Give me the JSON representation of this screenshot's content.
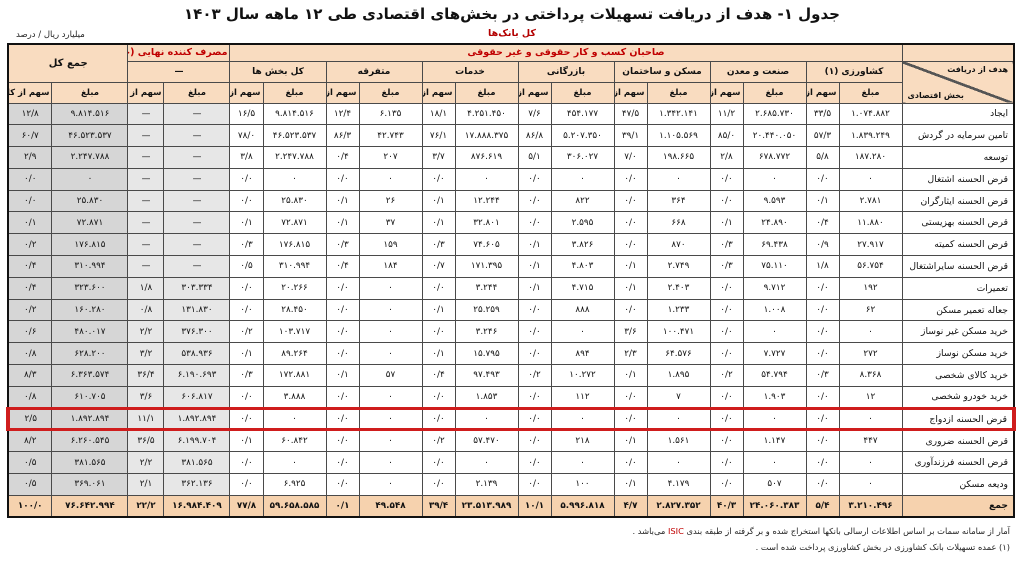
{
  "title": "جدول ۱- هدف از دریافت تسهیلات پرداختی در بخش‌های اقتصادی طی ۱۲ ماهه سال ۱۴۰۳",
  "unit_label": "میلیارد ریال / درصد",
  "scope_label": "کل بانک‌ها",
  "table": {
    "corner": {
      "purpose": "هدف از دریافت",
      "sector": "بخش اقتصادی"
    },
    "groups": {
      "business_owners": "صاحبان کسب و کار حقوقی و غیر حقوقی",
      "household": "مصرف کننده نهایی (خانوار)",
      "household_sub": "—",
      "grand_total": "جمع کل",
      "sectors": [
        "کشاورزی (۱)",
        "صنعت و معدن",
        "مسکن و ساختمان",
        "بازرگانی",
        "خدمات",
        "متفرقه",
        "کل بخش ها"
      ]
    },
    "sub_headers": {
      "amount": "مبلغ",
      "share": "سهم از کل"
    },
    "rows": [
      {
        "label": "ایجاد",
        "cells": [
          "۱.۰۷۴.۸۸۲",
          "۳۳/۵",
          "۲.۶۸۵.۷۳۰",
          "۱۱/۲",
          "۱.۳۴۲.۱۴۱",
          "۴۷/۵",
          "۴۵۴.۱۷۷",
          "۷/۶",
          "۴.۲۵۱.۴۵۰",
          "۱۸/۱",
          "۶.۱۳۵",
          "۱۲/۴",
          "۹.۸۱۴.۵۱۶",
          "۱۶/۵",
          "—",
          "—",
          "۹.۸۱۴.۵۱۶",
          "۱۲/۸"
        ]
      },
      {
        "label": "تامین سرمایه در گردش",
        "cells": [
          "۱.۸۳۹.۲۴۹",
          "۵۷/۳",
          "۲۰.۴۴۰.۰۵۰",
          "۸۵/۰",
          "۱.۱۰۵.۵۶۹",
          "۳۹/۱",
          "۵.۲۰۷.۳۵۰",
          "۸۶/۸",
          "۱۷.۸۸۸.۳۷۵",
          "۷۶/۱",
          "۴۲.۷۴۳",
          "۸۶/۳",
          "۴۶.۵۲۳.۵۳۷",
          "۷۸/۰",
          "—",
          "—",
          "۴۶.۵۲۳.۵۳۷",
          "۶۰/۷"
        ]
      },
      {
        "label": "توسعه",
        "cells": [
          "۱۸۷.۲۸۰",
          "۵/۸",
          "۶۷۸.۷۷۲",
          "۲/۸",
          "۱۹۸.۶۶۵",
          "۷/۰",
          "۳۰۶.۰۲۷",
          "۵/۱",
          "۸۷۶.۶۱۹",
          "۳/۷",
          "۲۰۷",
          "۰/۴",
          "۲.۲۴۷.۷۸۸",
          "۳/۸",
          "—",
          "—",
          "۲.۲۴۷.۷۸۸",
          "۲/۹"
        ]
      },
      {
        "label": "قرض الحسنه اشتغال",
        "cells": [
          "۰",
          "۰/۰",
          "۰",
          "۰/۰",
          "۰",
          "۰/۰",
          "۰",
          "۰/۰",
          "۰",
          "۰/۰",
          "۰",
          "۰/۰",
          "۰",
          "۰/۰",
          "—",
          "—",
          "۰",
          "۰/۰"
        ]
      },
      {
        "label": "قرض الحسنه ایثارگران",
        "cells": [
          "۲.۷۸۱",
          "۰/۱",
          "۹.۵۹۳",
          "۰/۰",
          "۳۶۴",
          "۰/۰",
          "۸۲۲",
          "۰/۰",
          "۱۲.۲۴۴",
          "۰/۱",
          "۲۶",
          "۰/۱",
          "۲۵.۸۳۰",
          "۰/۰",
          "—",
          "—",
          "۲۵.۸۳۰",
          "۰/۰"
        ]
      },
      {
        "label": "قرض الحسنه بهزیستی",
        "cells": [
          "۱۱.۸۸۰",
          "۰/۴",
          "۲۴.۸۹۰",
          "۰/۱",
          "۶۶۸",
          "۰/۰",
          "۲.۵۹۵",
          "۰/۰",
          "۳۲.۸۰۱",
          "۰/۱",
          "۳۷",
          "۰/۱",
          "۷۲.۸۷۱",
          "۰/۱",
          "—",
          "—",
          "۷۲.۸۷۱",
          "۰/۱"
        ]
      },
      {
        "label": "قرض الحسنه کمیته",
        "cells": [
          "۲۷.۹۱۷",
          "۰/۹",
          "۶۹.۴۳۸",
          "۰/۳",
          "۸۷۰",
          "۰/۰",
          "۳.۸۲۶",
          "۰/۱",
          "۷۴.۶۰۵",
          "۰/۳",
          "۱۵۹",
          "۰/۳",
          "۱۷۶.۸۱۵",
          "۰/۳",
          "—",
          "—",
          "۱۷۶.۸۱۵",
          "۰/۲"
        ]
      },
      {
        "label": "قرض الحسنه سایراشتغال",
        "cells": [
          "۵۶.۷۵۴",
          "۱/۸",
          "۷۵.۱۱۰",
          "۰/۳",
          "۲.۷۴۹",
          "۰/۱",
          "۴.۸۰۳",
          "۰/۱",
          "۱۷۱.۳۹۵",
          "۰/۷",
          "۱۸۴",
          "۰/۴",
          "۳۱۰.۹۹۴",
          "۰/۵",
          "—",
          "—",
          "۳۱۰.۹۹۴",
          "۰/۴"
        ]
      },
      {
        "label": "تعمیرات",
        "cells": [
          "۱۹۲",
          "۰/۰",
          "۹.۷۱۲",
          "۰/۰",
          "۲.۴۰۳",
          "۰/۱",
          "۴.۷۱۵",
          "۰/۱",
          "۳.۲۴۴",
          "۰/۰",
          "۰",
          "۰/۰",
          "۲۰.۲۶۶",
          "۰/۰",
          "۳۰۳.۳۳۴",
          "۱/۸",
          "۳۲۳.۶۰۰",
          "۰/۴"
        ]
      },
      {
        "label": "جعاله تعمیر مسکن",
        "cells": [
          "۶۲",
          "۰/۰",
          "۱.۰۰۸",
          "۰/۰",
          "۱.۲۳۳",
          "۰/۰",
          "۸۸۸",
          "۰/۰",
          "۲۵.۲۵۹",
          "۰/۱",
          "۰",
          "۰/۰",
          "۲۸.۴۵۰",
          "۰/۰",
          "۱۳۱.۸۳۰",
          "۰/۸",
          "۱۶۰.۲۸۰",
          "۰/۲"
        ]
      },
      {
        "label": "خرید مسکن غیر نوساز",
        "cells": [
          "۰",
          "۰/۰",
          "۰",
          "۰/۰",
          "۱۰۰.۴۷۱",
          "۳/۶",
          "۰",
          "۰/۰",
          "۳.۲۴۶",
          "۰/۰",
          "۰",
          "۰/۰",
          "۱۰۳.۷۱۷",
          "۰/۲",
          "۳۷۶.۳۰۰",
          "۲/۲",
          "۴۸۰.۰۱۷",
          "۰/۶"
        ]
      },
      {
        "label": "خرید مسکن نوساز",
        "cells": [
          "۲۷۲",
          "۰/۰",
          "۷.۷۲۷",
          "۰/۰",
          "۶۴.۵۷۶",
          "۲/۳",
          "۸۹۴",
          "۰/۰",
          "۱۵.۷۹۵",
          "۰/۱",
          "۰",
          "۰/۰",
          "۸۹.۲۶۴",
          "۰/۱",
          "۵۳۸.۹۳۶",
          "۳/۲",
          "۶۲۸.۲۰۰",
          "۰/۸"
        ]
      },
      {
        "label": "خرید کالای شخصی",
        "cells": [
          "۸.۳۶۸",
          "۰/۳",
          "۵۴.۷۹۴",
          "۰/۲",
          "۱.۸۹۵",
          "۰/۱",
          "۱۰.۲۷۲",
          "۰/۲",
          "۹۷.۴۹۳",
          "۰/۴",
          "۵۷",
          "۰/۱",
          "۱۷۲.۸۸۱",
          "۰/۳",
          "۶.۱۹۰.۶۹۳",
          "۳۶/۴",
          "۶.۳۶۳.۵۷۴",
          "۸/۳"
        ]
      },
      {
        "label": "خرید خودرو شخصی",
        "cells": [
          "۱۲",
          "۰/۰",
          "۱.۹۰۳",
          "۰/۰",
          "۷",
          "۰/۰",
          "۱۱۲",
          "۰/۰",
          "۱.۸۵۳",
          "۰/۰",
          "۰",
          "۰/۰",
          "۳.۸۸۸",
          "۰/۰",
          "۶۰۶.۸۱۷",
          "۳/۶",
          "۶۱۰.۷۰۵",
          "۰/۸"
        ]
      },
      {
        "label": "قرض الحسنه ازدواج",
        "highlight": true,
        "cells": [
          "۰",
          "۰/۰",
          "۰",
          "۰/۰",
          "۰",
          "۰/۰",
          "۰",
          "۰/۰",
          "۰",
          "۰/۰",
          "۰",
          "۰/۰",
          "۰",
          "۰/۰",
          "۱.۸۹۲.۸۹۴",
          "۱۱/۱",
          "۱.۸۹۲.۸۹۴",
          "۲/۵"
        ]
      },
      {
        "label": "قرض الحسنه ضروری",
        "cells": [
          "۴۴۷",
          "۰/۰",
          "۱.۱۴۷",
          "۰/۰",
          "۱.۵۶۱",
          "۰/۱",
          "۲۱۸",
          "۰/۰",
          "۵۷.۴۷۰",
          "۰/۲",
          "۰",
          "۰/۰",
          "۶۰.۸۴۲",
          "۰/۱",
          "۶.۱۹۹.۷۰۴",
          "۳۶/۵",
          "۶.۲۶۰.۵۴۵",
          "۸/۲"
        ]
      },
      {
        "label": "قرض الحسنه فرزندآوری",
        "cells": [
          "۰",
          "۰/۰",
          "۰",
          "۰/۰",
          "۰",
          "۰/۰",
          "۰",
          "۰/۰",
          "۰",
          "۰/۰",
          "۰",
          "۰/۰",
          "۰",
          "۰/۰",
          "۳۸۱.۵۶۵",
          "۲/۲",
          "۳۸۱.۵۶۵",
          "۰/۵"
        ]
      },
      {
        "label": "ودیعه مسکن",
        "cells": [
          "۰",
          "۰/۰",
          "۵۰۷",
          "۰/۰",
          "۴.۱۷۹",
          "۰/۱",
          "۱۰۰",
          "۰/۰",
          "۲.۱۳۹",
          "۰/۰",
          "۰",
          "۰/۰",
          "۶.۹۲۵",
          "۰/۰",
          "۳۶۲.۱۳۶",
          "۲/۱",
          "۳۶۹.۰۶۱",
          "۰/۵"
        ]
      },
      {
        "label": "جمع",
        "total": true,
        "cells": [
          "۳.۲۱۰.۴۹۶",
          "۵/۴",
          "۲۴.۰۶۰.۳۸۳",
          "۴۰/۳",
          "۲.۸۲۷.۳۵۲",
          "۴/۷",
          "۵.۹۹۶.۸۱۸",
          "۱۰/۱",
          "۲۳.۵۱۳.۹۸۹",
          "۳۹/۴",
          "۴۹.۵۴۸",
          "۰/۱",
          "۵۹.۶۵۸.۵۸۵",
          "۷۷/۸",
          "۱۶.۹۸۴.۴۰۹",
          "۲۲/۲",
          "۷۶.۶۴۲.۹۹۴",
          "۱۰۰/۰"
        ]
      }
    ]
  },
  "footnotes": {
    "line1_before": "آمار از سامانه سمات بر اساس اطلاعات ارسالی بانکها استخراج شده و بر گرفته از طبقه بندی ",
    "line1_isic": "ISIC",
    "line1_after": " می‌باشد .",
    "line2": "(۱)   عمده تسهیلات بانک کشاورزی در بخش کشاورزی پرداخت شده است ."
  },
  "colors": {
    "header_bg": "#f9dcc0",
    "accent_red": "#c00000",
    "highlight_border": "#cf1d1d",
    "household_col_bg": "#e7e7e7",
    "grand_total_col_bg": "#d6d6d6",
    "total_row_bg": "#f6d2ae"
  }
}
